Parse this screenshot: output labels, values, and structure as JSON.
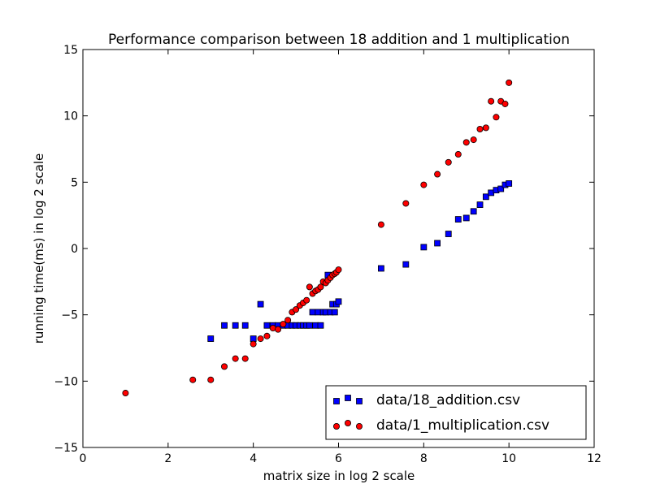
{
  "chart_data": {
    "type": "scatter",
    "title": "Performance comparison between 18 addition and 1 multiplication",
    "xlabel": "matrix size in log 2 scale",
    "ylabel": "running time(ms) in log 2 scale",
    "xlim": [
      0,
      12
    ],
    "ylim": [
      -15,
      15
    ],
    "xticks": [
      0,
      2,
      4,
      6,
      8,
      10,
      12
    ],
    "yticks": [
      -15,
      -10,
      -5,
      0,
      5,
      10,
      15
    ],
    "grid": false,
    "legend_position": "lower-right",
    "series": [
      {
        "name": "data/18_addition.csv",
        "marker": "square",
        "color": "#0000ff",
        "points": [
          [
            3.0,
            -6.8
          ],
          [
            3.32,
            -5.8
          ],
          [
            3.58,
            -5.8
          ],
          [
            3.81,
            -5.8
          ],
          [
            4.0,
            -6.8
          ],
          [
            4.17,
            -4.2
          ],
          [
            4.32,
            -5.8
          ],
          [
            4.46,
            -5.8
          ],
          [
            4.58,
            -5.8
          ],
          [
            4.7,
            -5.8
          ],
          [
            4.81,
            -5.8
          ],
          [
            4.91,
            -5.8
          ],
          [
            5.0,
            -5.8
          ],
          [
            5.09,
            -5.8
          ],
          [
            5.17,
            -5.8
          ],
          [
            5.25,
            -5.8
          ],
          [
            5.32,
            -5.8
          ],
          [
            5.39,
            -4.8
          ],
          [
            5.46,
            -5.8
          ],
          [
            5.52,
            -4.8
          ],
          [
            5.58,
            -5.8
          ],
          [
            5.64,
            -4.8
          ],
          [
            5.7,
            -4.8
          ],
          [
            5.75,
            -2.0
          ],
          [
            5.81,
            -4.8
          ],
          [
            5.86,
            -4.2
          ],
          [
            5.91,
            -4.8
          ],
          [
            5.95,
            -4.2
          ],
          [
            6.0,
            -4.0
          ],
          [
            7.0,
            -1.5
          ],
          [
            7.58,
            -1.2
          ],
          [
            8.0,
            0.1
          ],
          [
            8.32,
            0.4
          ],
          [
            8.58,
            1.1
          ],
          [
            8.81,
            2.2
          ],
          [
            9.0,
            2.3
          ],
          [
            9.17,
            2.8
          ],
          [
            9.32,
            3.3
          ],
          [
            9.46,
            3.9
          ],
          [
            9.58,
            4.2
          ],
          [
            9.7,
            4.4
          ],
          [
            9.81,
            4.5
          ],
          [
            9.91,
            4.8
          ],
          [
            10.0,
            4.9
          ]
        ]
      },
      {
        "name": "data/1_multiplication.csv",
        "marker": "circle",
        "color": "#ff0000",
        "points": [
          [
            1.0,
            -10.9
          ],
          [
            2.58,
            -9.9
          ],
          [
            3.0,
            -9.9
          ],
          [
            3.32,
            -8.9
          ],
          [
            3.58,
            -8.3
          ],
          [
            3.81,
            -8.3
          ],
          [
            4.0,
            -7.2
          ],
          [
            4.17,
            -6.8
          ],
          [
            4.32,
            -6.6
          ],
          [
            4.46,
            -6.0
          ],
          [
            4.58,
            -6.1
          ],
          [
            4.7,
            -5.7
          ],
          [
            4.81,
            -5.4
          ],
          [
            4.91,
            -4.8
          ],
          [
            5.0,
            -4.6
          ],
          [
            5.09,
            -4.3
          ],
          [
            5.17,
            -4.1
          ],
          [
            5.25,
            -3.9
          ],
          [
            5.32,
            -2.9
          ],
          [
            5.39,
            -3.4
          ],
          [
            5.46,
            -3.2
          ],
          [
            5.52,
            -3.1
          ],
          [
            5.58,
            -2.9
          ],
          [
            5.64,
            -2.5
          ],
          [
            5.7,
            -2.6
          ],
          [
            5.75,
            -2.4
          ],
          [
            5.81,
            -2.2
          ],
          [
            5.86,
            -2.0
          ],
          [
            5.91,
            -1.9
          ],
          [
            5.95,
            -1.8
          ],
          [
            6.0,
            -1.6
          ],
          [
            7.0,
            1.8
          ],
          [
            7.58,
            3.4
          ],
          [
            8.0,
            4.8
          ],
          [
            8.32,
            5.6
          ],
          [
            8.58,
            6.5
          ],
          [
            8.81,
            7.1
          ],
          [
            9.0,
            8.0
          ],
          [
            9.17,
            8.2
          ],
          [
            9.32,
            9.0
          ],
          [
            9.46,
            9.1
          ],
          [
            9.58,
            11.1
          ],
          [
            9.7,
            9.9
          ],
          [
            9.81,
            11.1
          ],
          [
            9.91,
            10.9
          ],
          [
            10.0,
            12.5
          ]
        ]
      }
    ]
  }
}
